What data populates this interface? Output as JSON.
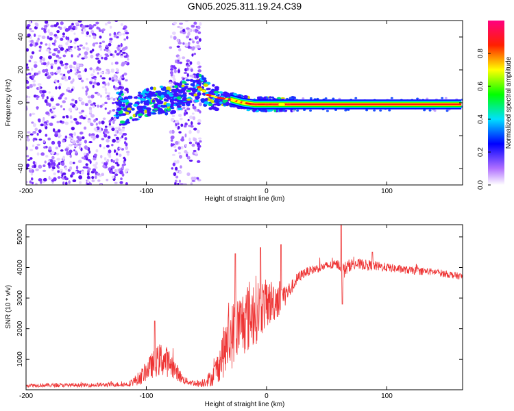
{
  "chart_data": [
    {
      "type": "heatmap",
      "title": "GN05.2025.311.19.24.C39",
      "xlabel": "Height of straight line (km)",
      "ylabel": "Frequency (Hz)",
      "xlim": [
        -200,
        163
      ],
      "ylim": [
        -50,
        50
      ],
      "xticks": [
        -200,
        -100,
        0,
        100
      ],
      "yticks": [
        -40,
        -20,
        0,
        20,
        40
      ],
      "colorbar": {
        "label": "Normalized spectral amplitude",
        "range": [
          0,
          1
        ],
        "ticks": [
          0.0,
          0.2,
          0.4,
          0.6,
          0.8
        ],
        "colors": [
          "#ffffff",
          "#a050ff",
          "#0000ff",
          "#00e0ff",
          "#00ff00",
          "#ffff00",
          "#ff2000",
          "#ff0080"
        ]
      },
      "features": {
        "noise_region_1": [
          -200,
          -115
        ],
        "noise_region_2": [
          -80,
          -55
        ],
        "trace": {
          "x": [
            -120,
            -110,
            -100,
            -90,
            -80,
            -70,
            -60,
            -55,
            -50,
            -45,
            -40,
            -30,
            -20,
            -10,
            0,
            20,
            40,
            60,
            80,
            100,
            120,
            140,
            163
          ],
          "y": [
            -6,
            -3,
            0,
            2,
            1,
            5,
            8,
            10,
            5,
            4,
            3,
            2,
            0,
            -1,
            -1,
            -1,
            -1,
            -1,
            -1,
            -1,
            -1,
            -1,
            -1
          ]
        }
      }
    },
    {
      "type": "line",
      "title": "",
      "xlabel": "Height of straight line (km)",
      "ylabel": "SNR (10 * v/v)",
      "xlim": [
        -200,
        163
      ],
      "ylim": [
        0,
        5400
      ],
      "xticks": [
        -200,
        -100,
        0,
        100
      ],
      "yticks": [
        1000,
        2000,
        3000,
        4000,
        5000
      ],
      "series": [
        {
          "name": "SNR",
          "color": "#ee3333",
          "envelope": {
            "x": [
              -200,
              -150,
              -115,
              -105,
              -98,
              -92,
              -88,
              -84,
              -80,
              -75,
              -70,
              -65,
              -55,
              -45,
              -40,
              -35,
              -30,
              -25,
              -20,
              -15,
              -10,
              -5,
              0,
              5,
              10,
              15,
              20,
              25,
              30,
              40,
              50,
              60,
              64,
              70,
              80,
              100,
              120,
              140,
              163
            ],
            "base": [
              150,
              150,
              180,
              400,
              700,
              900,
              1000,
              950,
              850,
              600,
              350,
              250,
              200,
              400,
              800,
              1300,
              1700,
              2000,
              2200,
              2400,
              2600,
              2700,
              2800,
              2900,
              3000,
              3100,
              3300,
              3600,
              3800,
              3950,
              4050,
              4100,
              3900,
              4100,
              4100,
              4000,
              3900,
              3850,
              3700
            ],
            "spread": [
              80,
              80,
              100,
              300,
              450,
              600,
              700,
              650,
              550,
              350,
              200,
              120,
              150,
              350,
              700,
              1100,
              1400,
              1300,
              1400,
              1500,
              1500,
              1200,
              1000,
              900,
              800,
              500,
              300,
              250,
              200,
              180,
              180,
              200,
              350,
              250,
              220,
              180,
              160,
              150,
              140
            ]
          },
          "peaks": [
            {
              "x": -93,
              "y": 2250
            },
            {
              "x": -26,
              "y": 4450
            },
            {
              "x": -5,
              "y": 4650
            },
            {
              "x": 12,
              "y": 4750
            },
            {
              "x": 62,
              "y": 5400
            },
            {
              "x": 63,
              "y": 2800
            },
            {
              "x": 88,
              "y": 4500
            }
          ]
        }
      ]
    }
  ]
}
